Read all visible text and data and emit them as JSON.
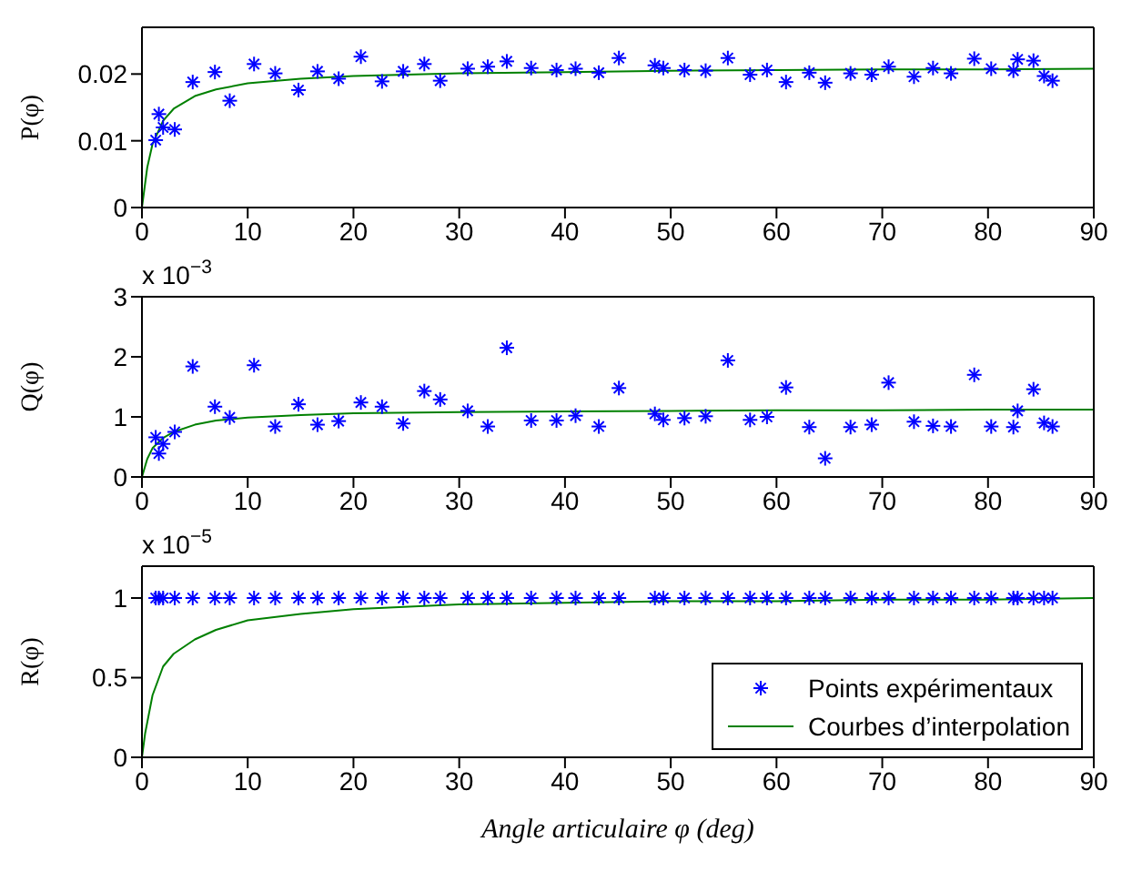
{
  "chart_data": [
    {
      "type": "scatter",
      "ylabel": "P(φ)",
      "xlim": [
        0,
        90
      ],
      "xticks": [
        0,
        10,
        20,
        30,
        40,
        50,
        60,
        70,
        80,
        90
      ],
      "ylim": [
        0,
        0.027
      ],
      "yticks": [
        0,
        0.01,
        0.02
      ],
      "grid": false,
      "legend": false,
      "x": [
        1.3,
        1.6,
        2.0,
        3.1,
        4.8,
        6.9,
        8.3,
        10.6,
        12.6,
        14.8,
        16.6,
        18.6,
        20.7,
        22.7,
        24.7,
        26.7,
        28.2,
        30.8,
        32.7,
        34.5,
        36.8,
        39.2,
        41.0,
        43.2,
        45.1,
        48.5,
        49.3,
        51.3,
        53.3,
        55.4,
        57.5,
        59.1,
        60.9,
        63.1,
        64.6,
        67.0,
        69.0,
        70.6,
        73.0,
        74.8,
        76.5,
        78.7,
        80.3,
        82.4,
        82.8,
        84.3,
        85.3,
        86.1
      ],
      "series": [
        {
          "marker": "cross",
          "color": "#0000ff",
          "values": [
            0.0101,
            0.014,
            0.012,
            0.0117,
            0.0188,
            0.0203,
            0.016,
            0.0215,
            0.0201,
            0.0176,
            0.0204,
            0.0193,
            0.0226,
            0.0189,
            0.0204,
            0.0215,
            0.019,
            0.0208,
            0.0211,
            0.0219,
            0.0209,
            0.0206,
            0.0208,
            0.0202,
            0.0224,
            0.0213,
            0.0209,
            0.0206,
            0.0205,
            0.0224,
            0.0199,
            0.0206,
            0.0188,
            0.0202,
            0.0187,
            0.0201,
            0.0199,
            0.0211,
            0.0196,
            0.0209,
            0.0201,
            0.0223,
            0.0208,
            0.0205,
            0.0222,
            0.022,
            0.0197,
            0.019
          ]
        },
        {
          "type": "line",
          "marker": "none",
          "line_style": "solid",
          "color": "#008000",
          "x": [
            0,
            0.5,
            1,
            2,
            3,
            5,
            7,
            10,
            15,
            20,
            30,
            40,
            50,
            60,
            70,
            80,
            90
          ],
          "values": [
            0,
            0.006,
            0.0095,
            0.013,
            0.0148,
            0.0167,
            0.0177,
            0.0186,
            0.0193,
            0.0197,
            0.0201,
            0.0203,
            0.0205,
            0.0206,
            0.0207,
            0.0207,
            0.0208
          ]
        }
      ]
    },
    {
      "type": "scatter",
      "ylabel": "Q(φ)",
      "annotations": [
        "x 10$^{−3}$"
      ],
      "xlim": [
        0,
        90
      ],
      "xticks": [
        0,
        10,
        20,
        30,
        40,
        50,
        60,
        70,
        80,
        90
      ],
      "ylim": [
        0,
        3
      ],
      "yticks": [
        0,
        1,
        2,
        3
      ],
      "grid": false,
      "legend": false,
      "x": [
        1.3,
        1.6,
        2.0,
        3.1,
        4.8,
        6.9,
        8.3,
        10.6,
        12.6,
        14.8,
        16.6,
        18.6,
        20.7,
        22.7,
        24.7,
        26.7,
        28.2,
        30.8,
        32.7,
        34.5,
        36.8,
        39.2,
        41.0,
        43.2,
        45.1,
        48.5,
        49.3,
        51.3,
        53.3,
        55.4,
        57.5,
        59.1,
        60.9,
        63.1,
        64.6,
        67.0,
        69.0,
        70.6,
        73.0,
        74.8,
        76.5,
        78.7,
        80.3,
        82.4,
        82.8,
        84.3,
        85.3,
        86.1
      ],
      "series": [
        {
          "marker": "cross",
          "color": "#0000ff",
          "values": [
            0.66,
            0.39,
            0.55,
            0.75,
            1.84,
            1.17,
            0.99,
            1.86,
            0.84,
            1.21,
            0.87,
            0.93,
            1.24,
            1.17,
            0.89,
            1.43,
            1.29,
            1.1,
            0.84,
            2.15,
            0.94,
            0.94,
            1.02,
            0.84,
            1.48,
            1.05,
            0.95,
            0.98,
            1.01,
            1.94,
            0.95,
            1.0,
            1.49,
            0.83,
            0.31,
            0.83,
            0.87,
            1.57,
            0.92,
            0.85,
            0.84,
            1.7,
            0.84,
            0.83,
            1.1,
            1.46,
            0.9,
            0.84
          ]
        },
        {
          "type": "line",
          "marker": "none",
          "line_style": "solid",
          "color": "#008000",
          "x": [
            0,
            0.5,
            1,
            2,
            3,
            5,
            7,
            10,
            15,
            20,
            30,
            40,
            50,
            60,
            70,
            80,
            90
          ],
          "values": [
            0,
            0.3,
            0.48,
            0.65,
            0.75,
            0.87,
            0.94,
            0.99,
            1.03,
            1.06,
            1.08,
            1.09,
            1.1,
            1.11,
            1.11,
            1.12,
            1.12
          ]
        }
      ]
    },
    {
      "type": "scatter",
      "ylabel": "R(φ)",
      "xlabel": "Angle articulaire φ (deg)",
      "annotations": [
        "x 10$^{−5}$"
      ],
      "xlim": [
        0,
        90
      ],
      "xticks": [
        0,
        10,
        20,
        30,
        40,
        50,
        60,
        70,
        80,
        90
      ],
      "ylim": [
        0,
        1.2
      ],
      "yticks": [
        0,
        0.5,
        1
      ],
      "grid": false,
      "legend": "bottom right",
      "x": [
        1.3,
        1.6,
        2.0,
        3.1,
        4.8,
        6.9,
        8.3,
        10.6,
        12.6,
        14.8,
        16.6,
        18.6,
        20.7,
        22.7,
        24.7,
        26.7,
        28.2,
        30.8,
        32.7,
        34.5,
        36.8,
        39.2,
        41.0,
        43.2,
        45.1,
        48.5,
        49.3,
        51.3,
        53.3,
        55.4,
        57.5,
        59.1,
        60.9,
        63.1,
        64.6,
        67.0,
        69.0,
        70.6,
        73.0,
        74.8,
        76.5,
        78.7,
        80.3,
        82.4,
        82.8,
        84.3,
        85.3,
        86.1
      ],
      "series": [
        {
          "name": "Points expérimentaux",
          "marker": "cross",
          "color": "#0000ff",
          "values": [
            1,
            1,
            1,
            1,
            1,
            1,
            1,
            1,
            1,
            1,
            1,
            1,
            1,
            1,
            1,
            1,
            1,
            1,
            1,
            1,
            1,
            1,
            1,
            1,
            1,
            1,
            1,
            1,
            1,
            1,
            1,
            1,
            1,
            1,
            1,
            1,
            1,
            1,
            1,
            1,
            1,
            1,
            1,
            1,
            1,
            1,
            1,
            1
          ]
        },
        {
          "type": "line",
          "name": "Courbes d’interpolation",
          "marker": "none",
          "line_style": "solid",
          "color": "#008000",
          "x": [
            0,
            0.3,
            1,
            2,
            3,
            5,
            7,
            10,
            15,
            20,
            30,
            40,
            50,
            60,
            70,
            80,
            90
          ],
          "values": [
            0,
            0.15,
            0.39,
            0.57,
            0.65,
            0.74,
            0.8,
            0.86,
            0.9,
            0.93,
            0.96,
            0.97,
            0.98,
            0.98,
            0.99,
            0.99,
            1.0
          ]
        }
      ]
    }
  ]
}
